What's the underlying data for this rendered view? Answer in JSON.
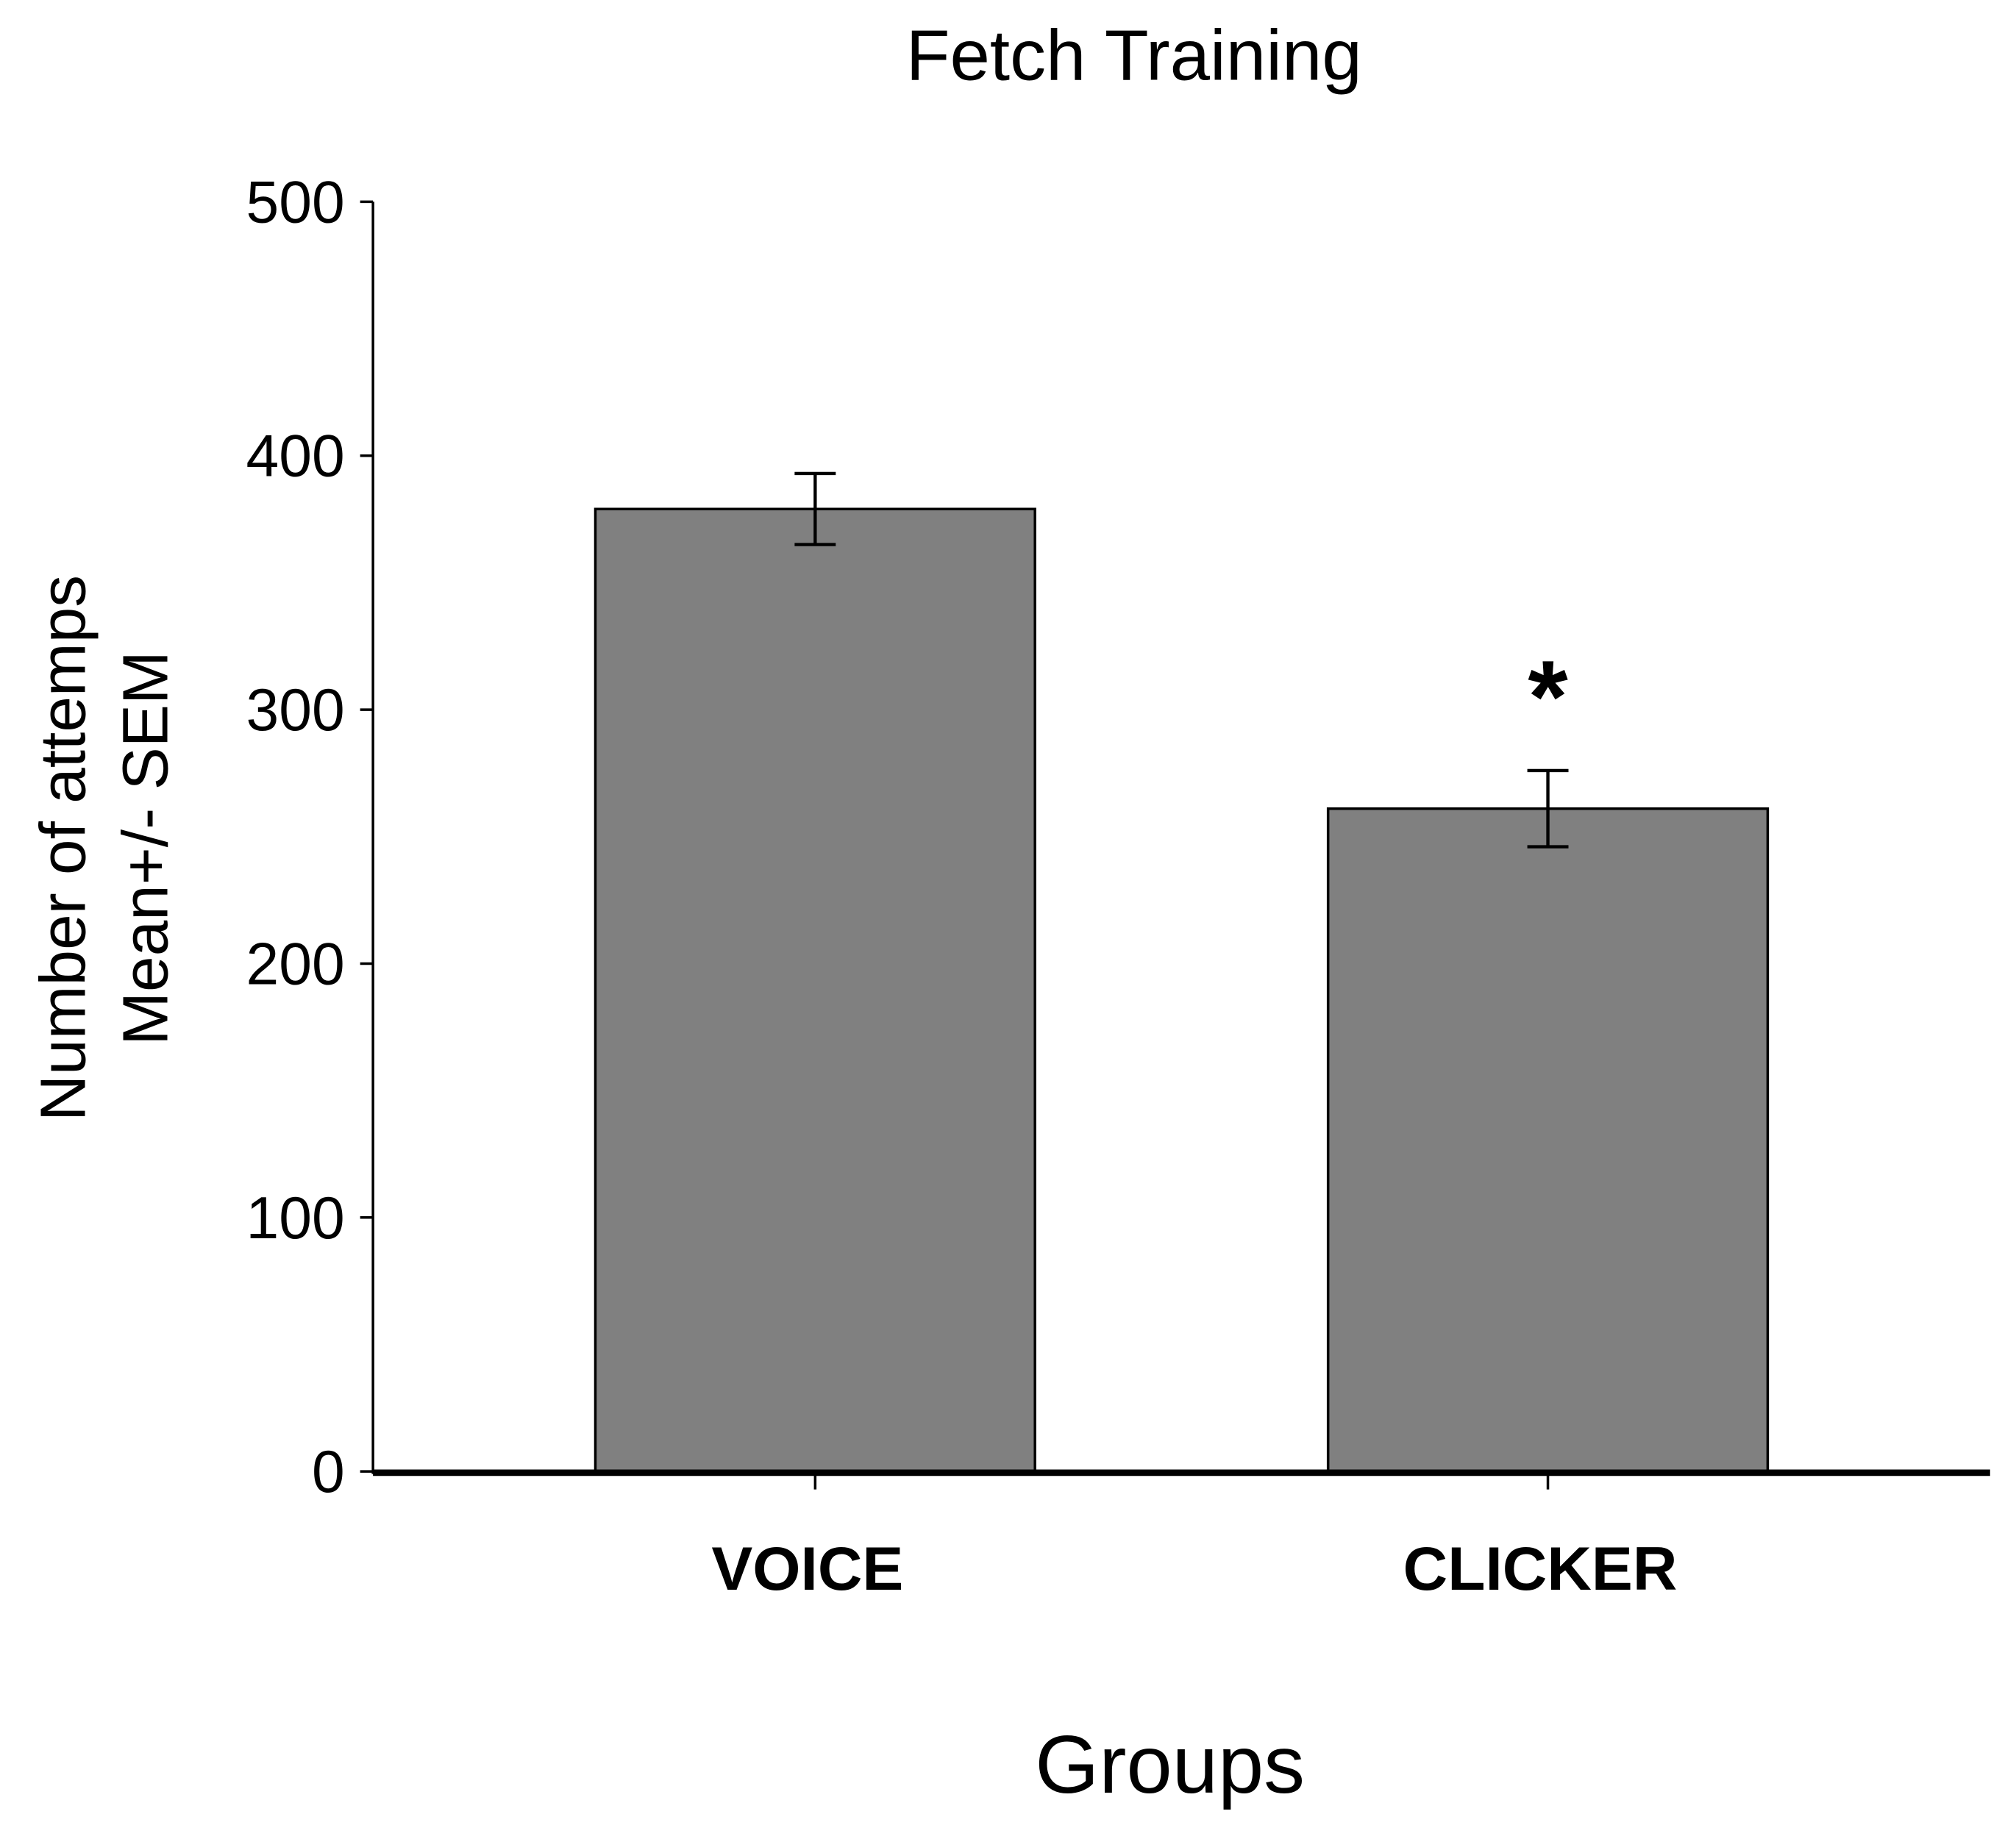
{
  "chart_data": {
    "type": "bar",
    "title": "Fetch Training",
    "x_label": "Groups",
    "y_label": [
      "Number of attemps",
      "Mean+/- SEM"
    ],
    "categories": [
      "VOICE",
      "CLICKER"
    ],
    "values": [
      379,
      261
    ],
    "errors": [
      14,
      15
    ],
    "color": "#808080",
    "annotations": [
      {
        "category": 1,
        "text": "*"
      }
    ],
    "ylim": [
      0,
      500
    ],
    "yticks": [
      0,
      100,
      200,
      300,
      400,
      500
    ],
    "grid": false
  }
}
